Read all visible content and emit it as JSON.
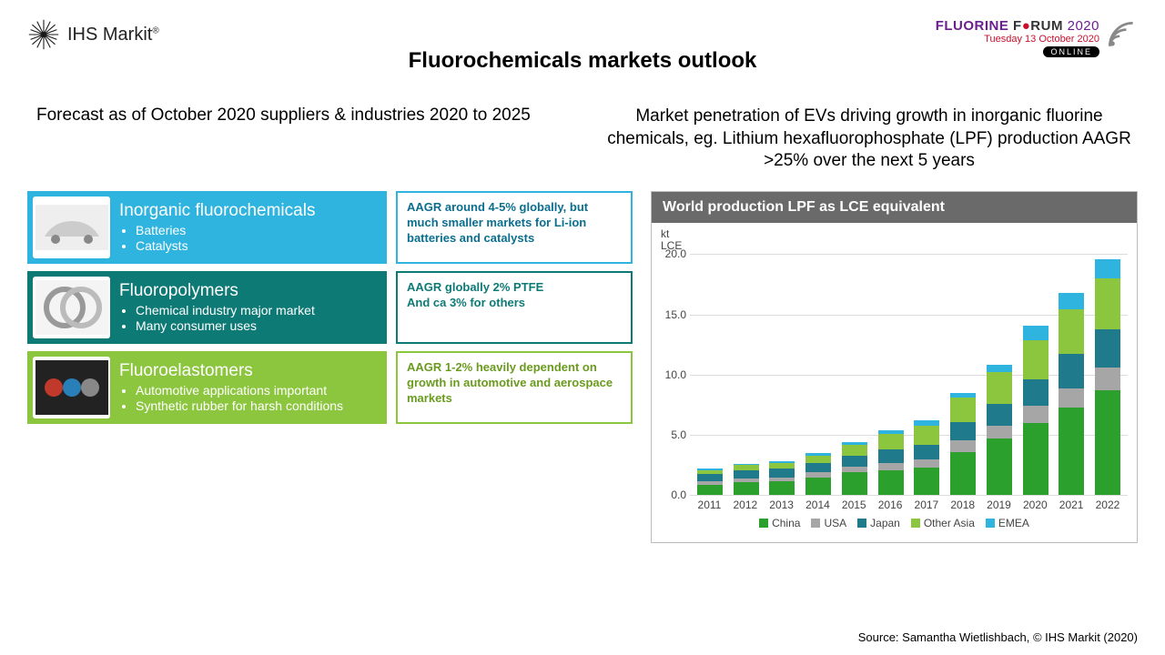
{
  "brand": {
    "name": "IHS Markit",
    "sup": "®"
  },
  "forum": {
    "word1": "FLUORINE",
    "word2_a": "F",
    "word2_b": "RUM",
    "year": "2020",
    "date": "Tuesday 13 October 2020",
    "online": "ONLINE"
  },
  "title": "Fluorochemicals markets outlook",
  "subhead_left": "Forecast as of October 2020 suppliers & industries 2020 to 2025",
  "subhead_right": "Market penetration of EVs driving growth in inorganic fluorine chemicals, eg. Lithium hexafluorophosphate (LPF) production AAGR >25% over the next 5 years",
  "cards": [
    {
      "title": "Inorganic fluorochemicals",
      "bullets": [
        "Batteries",
        "Catalysts"
      ],
      "note": "AAGR around 4-5% globally, but much smaller markets for Li-ion batteries and catalysts"
    },
    {
      "title": "Fluoropolymers",
      "bullets": [
        "Chemical industry major market",
        "Many consumer uses"
      ],
      "note": "AAGR globally 2% PTFE\nAnd ca 3% for others"
    },
    {
      "title": "Fluoroelastomers",
      "bullets": [
        "Automotive applications important",
        "Synthetic rubber for harsh conditions"
      ],
      "note": "AAGR 1-2% heavily dependent on growth in automotive and aerospace markets"
    }
  ],
  "chart": {
    "title": "World production LPF as LCE equivalent",
    "y_unit": "kt\nLCE",
    "ylim": [
      0,
      20
    ],
    "ytick_step": 5,
    "categories": [
      "2011",
      "2012",
      "2013",
      "2014",
      "2015",
      "2016",
      "2017",
      "2018",
      "2019",
      "2020",
      "2021",
      "2022"
    ],
    "series": [
      "China",
      "USA",
      "Japan",
      "Other Asia",
      "EMEA"
    ],
    "series_colors": {
      "China": "#2ca02c",
      "USA": "#a6a6a6",
      "Japan": "#1f7a8c",
      "Other Asia": "#8cc63f",
      "EMEA": "#2fb4e0"
    },
    "data": {
      "2011": {
        "China": 0.9,
        "USA": 0.3,
        "Japan": 0.6,
        "Other Asia": 0.3,
        "EMEA": 0.1
      },
      "2012": {
        "China": 1.1,
        "USA": 0.3,
        "Japan": 0.7,
        "Other Asia": 0.4,
        "EMEA": 0.1
      },
      "2013": {
        "China": 1.2,
        "USA": 0.3,
        "Japan": 0.7,
        "Other Asia": 0.5,
        "EMEA": 0.1
      },
      "2014": {
        "China": 1.5,
        "USA": 0.4,
        "Japan": 0.8,
        "Other Asia": 0.6,
        "EMEA": 0.2
      },
      "2015": {
        "China": 1.9,
        "USA": 0.5,
        "Japan": 0.9,
        "Other Asia": 0.9,
        "EMEA": 0.2
      },
      "2016": {
        "China": 2.1,
        "USA": 0.6,
        "Japan": 1.1,
        "Other Asia": 1.3,
        "EMEA": 0.3
      },
      "2017": {
        "China": 2.3,
        "USA": 0.7,
        "Japan": 1.2,
        "Other Asia": 1.6,
        "EMEA": 0.4
      },
      "2018": {
        "China": 3.6,
        "USA": 1.0,
        "Japan": 1.5,
        "Other Asia": 2.0,
        "EMEA": 0.4
      },
      "2019": {
        "China": 4.7,
        "USA": 1.1,
        "Japan": 1.8,
        "Other Asia": 2.6,
        "EMEA": 0.6
      },
      "2020": {
        "China": 6.0,
        "USA": 1.4,
        "Japan": 2.2,
        "Other Asia": 3.3,
        "EMEA": 1.2
      },
      "2021": {
        "China": 7.3,
        "USA": 1.6,
        "Japan": 2.8,
        "Other Asia": 3.7,
        "EMEA": 1.4
      },
      "2022": {
        "China": 8.7,
        "USA": 1.9,
        "Japan": 3.2,
        "Other Asia": 4.2,
        "EMEA": 1.6
      }
    },
    "background": "#ffffff",
    "grid_color": "#dcdcdc",
    "axis_fontsize": 12,
    "title_fontsize": 16
  },
  "source": "Source: Samantha Wietlishbach, © IHS Markit (2020)"
}
